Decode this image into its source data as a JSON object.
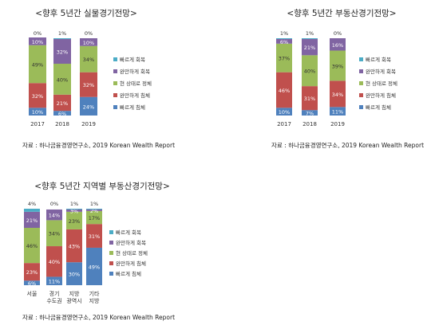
{
  "chart_data": [
    {
      "type": "bar",
      "stacked": true,
      "title": "<향후 5년간 실물경기전망>",
      "categories": [
        "2017",
        "2018",
        "2019"
      ],
      "series": [
        {
          "name": "빠르게 침체",
          "color": "#4f81bd",
          "values": [
            10,
            6,
            24
          ]
        },
        {
          "name": "완만하게 침체",
          "color": "#c0504d",
          "values": [
            32,
            21,
            32
          ]
        },
        {
          "name": "현 상태로 정체",
          "color": "#9bbb59",
          "values": [
            49,
            40,
            34
          ]
        },
        {
          "name": "완만하게 회복",
          "color": "#8064a2",
          "values": [
            10,
            32,
            10
          ]
        },
        {
          "name": "빠르게 회복",
          "color": "#4bacc6",
          "values": [
            0,
            1,
            0
          ]
        }
      ],
      "value_labels": [
        [
          "10%",
          "32%",
          "49%",
          "10%",
          "0%"
        ],
        [
          "6%",
          "21%",
          "40%",
          "32%",
          "1%"
        ],
        [
          "24%",
          "32%",
          "34%",
          "10%",
          "0%"
        ]
      ],
      "source": "자료 : 하나금융경영연구소, 2019 Korean Wealth Report"
    },
    {
      "type": "bar",
      "stacked": true,
      "title": "<향후 5년간 부동산경기전망>",
      "categories": [
        "2017",
        "2018",
        "2019"
      ],
      "series": [
        {
          "name": "빠르게 침체",
          "color": "#4f81bd",
          "values": [
            10,
            7,
            11
          ]
        },
        {
          "name": "완만하게 침체",
          "color": "#c0504d",
          "values": [
            46,
            31,
            34
          ]
        },
        {
          "name": "현 상태로 정체",
          "color": "#9bbb59",
          "values": [
            37,
            40,
            39
          ]
        },
        {
          "name": "완만하게 회복",
          "color": "#8064a2",
          "values": [
            6,
            21,
            16
          ]
        },
        {
          "name": "빠르게 회복",
          "color": "#4bacc6",
          "values": [
            1,
            1,
            0
          ]
        }
      ],
      "value_labels": [
        [
          "10%",
          "46%",
          "37%",
          "6%",
          "1%"
        ],
        [
          "7%",
          "31%",
          "40%",
          "21%",
          "1%"
        ],
        [
          "11%",
          "34%",
          "39%",
          "16%",
          "0%"
        ]
      ],
      "source": "자료 : 하나금융경영연구소, 2019 Korean Wealth Report"
    },
    {
      "type": "bar",
      "stacked": true,
      "title": "<향후 5년간 지역별 부동산경기전망>",
      "categories": [
        "서울",
        "경기 수도권",
        "지방 광역시",
        "기타 지방"
      ],
      "category_lines": [
        [
          "서울"
        ],
        [
          "경기",
          "수도권"
        ],
        [
          "지방",
          "광역시"
        ],
        [
          "기타",
          "지방"
        ]
      ],
      "series": [
        {
          "name": "빠르게 침체",
          "color": "#4f81bd",
          "values": [
            6,
            11,
            30,
            49
          ]
        },
        {
          "name": "완만하게 침체",
          "color": "#c0504d",
          "values": [
            23,
            40,
            43,
            31
          ]
        },
        {
          "name": "현 상태로 정체",
          "color": "#9bbb59",
          "values": [
            46,
            34,
            23,
            17
          ]
        },
        {
          "name": "완만하게 회복",
          "color": "#8064a2",
          "values": [
            21,
            14,
            3,
            2
          ]
        },
        {
          "name": "빠르게 회복",
          "color": "#4bacc6",
          "values": [
            4,
            0,
            1,
            1
          ]
        }
      ],
      "value_labels": [
        [
          "6%",
          "23%",
          "46%",
          "21%",
          "4%"
        ],
        [
          "11%",
          "40%",
          "34%",
          "14%",
          "0%"
        ],
        [
          "30%",
          "43%",
          "23%",
          "3%",
          "1%"
        ],
        [
          "49%",
          "31%",
          "17%",
          "2%",
          "1%"
        ]
      ],
      "source": "자료 : 하나금융경영연구소, 2019 Korean Wealth Report"
    }
  ]
}
